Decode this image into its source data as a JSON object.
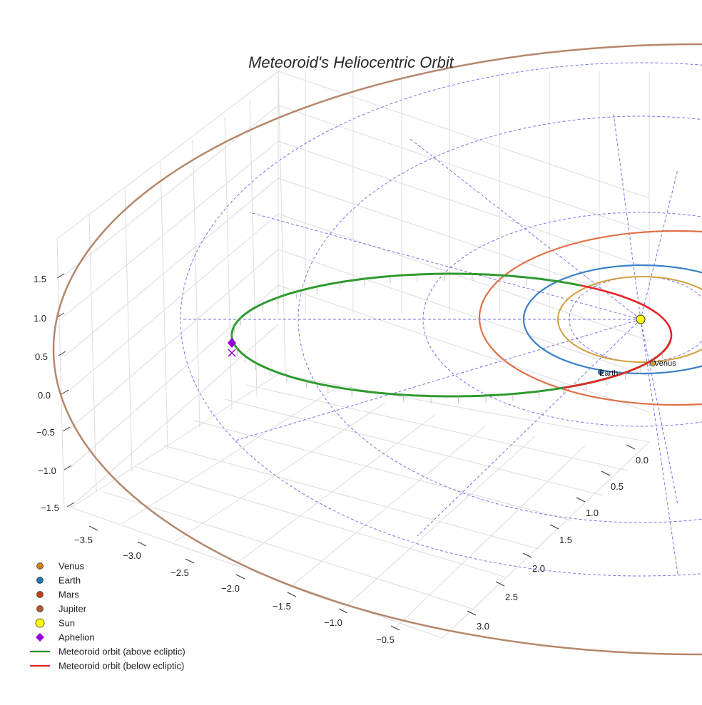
{
  "chart_data": {
    "type": "3d-line",
    "title": "Meteoroid's Heliocentric Orbit",
    "x_ticks": [
      "−3.5",
      "−3.0",
      "−2.5",
      "−2.0",
      "−1.5",
      "−1.0",
      "−0.5"
    ],
    "y_ticks": [
      "0.0",
      "0.5",
      "1.0",
      "1.5",
      "2.0",
      "2.5",
      "3.0"
    ],
    "z_ticks": [
      "1.5",
      "1.0",
      "0.5",
      "0.0",
      "−0.5",
      "−1.0",
      "−1.5"
    ],
    "zlim": [
      -1.5,
      1.5
    ],
    "grid": true,
    "legend_position": "bottom-left",
    "colors": {
      "venus": "#d4a040",
      "earth": "#3a80c8",
      "mars": "#e0704a",
      "jupiter": "#b5876a",
      "sun": "#ffff00",
      "aphelion": "#9400d3",
      "orbit_above": "#2e9a2e",
      "orbit_below": "#e8222a",
      "reference_grid": "#5a5ae6"
    },
    "planet_labels": {
      "earth": "Earth",
      "venus": "Venus"
    },
    "legend": [
      {
        "label": "Venus",
        "marker": "dot",
        "color": "#d08020"
      },
      {
        "label": "Earth",
        "marker": "dot",
        "color": "#1f77b4"
      },
      {
        "label": "Mars",
        "marker": "dot",
        "color": "#c1440e"
      },
      {
        "label": "Jupiter",
        "marker": "dot",
        "color": "#b05a2f"
      },
      {
        "label": "Sun",
        "marker": "sun",
        "color": "#ffff00"
      },
      {
        "label": "Aphelion",
        "marker": "diamond",
        "color": "#9400d3"
      },
      {
        "label": "Meteoroid orbit (above ecliptic)",
        "marker": "line",
        "color": "#2e8b2e"
      },
      {
        "label": "Meteoroid orbit (below ecliptic)",
        "marker": "line",
        "color": "#e8222a"
      }
    ]
  }
}
